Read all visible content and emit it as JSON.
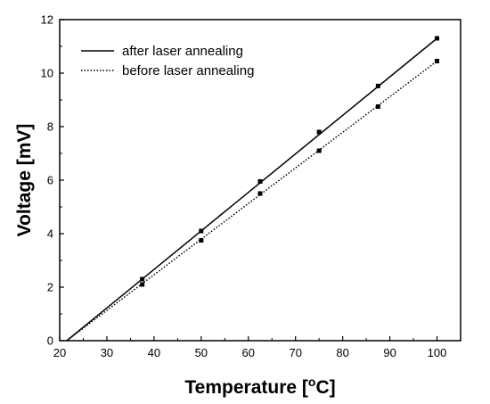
{
  "chart_data": {
    "type": "line",
    "xlabel": "Temperature [°C]",
    "xlabel_parts": {
      "prefix": "Temperature [",
      "superscript": "o",
      "suffix": "C]"
    },
    "ylabel": "Voltage [mV]",
    "xlim": [
      20,
      105
    ],
    "ylim": [
      0,
      12
    ],
    "xticks": [
      20,
      30,
      40,
      50,
      60,
      70,
      80,
      90,
      100
    ],
    "yticks": [
      0,
      2,
      4,
      6,
      8,
      10,
      12
    ],
    "grid": false,
    "legend_position": "top-left",
    "series": [
      {
        "name": "after laser annealing",
        "line_style": "solid",
        "marker": "square",
        "color": "#000000",
        "fit_line": {
          "x": [
            21.5,
            100
          ],
          "y": [
            0,
            11.3
          ]
        },
        "x": [
          37.5,
          50,
          62.5,
          75,
          87.5,
          100
        ],
        "y": [
          2.3,
          4.1,
          5.95,
          7.8,
          9.52,
          11.3
        ]
      },
      {
        "name": "before laser annealing",
        "line_style": "dotted",
        "marker": "square",
        "color": "#000000",
        "fit_line": {
          "x": [
            21.5,
            100
          ],
          "y": [
            0,
            10.45
          ]
        },
        "x": [
          37.5,
          50,
          62.5,
          75,
          87.5,
          100
        ],
        "y": [
          2.1,
          3.75,
          5.5,
          7.1,
          8.75,
          10.45
        ]
      }
    ]
  }
}
